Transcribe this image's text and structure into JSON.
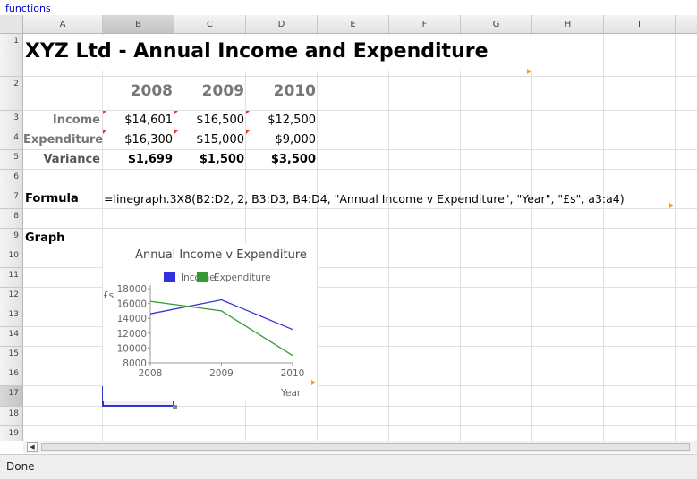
{
  "links": {
    "functions": "functions"
  },
  "columns": [
    "A",
    "B",
    "C",
    "D",
    "E",
    "F",
    "G",
    "H",
    "I"
  ],
  "selected_column": "B",
  "rows": [
    "1",
    "2",
    "3",
    "4",
    "5",
    "6",
    "7",
    "8",
    "9",
    "10",
    "11",
    "12",
    "13",
    "14",
    "15",
    "16",
    "17",
    "18",
    "19"
  ],
  "selected_row": "17",
  "cells": {
    "A1": "XYZ Ltd - Annual Income and Expenditure",
    "B2": "2008",
    "C2": "2009",
    "D2": "2010",
    "A3": "Income",
    "B3": "$14,601",
    "C3": "$16,500",
    "D3": "$12,500",
    "A4": "Expenditure",
    "B4": "$16,300",
    "C4": "$15,000",
    "D4": "$9,000",
    "A5": "Variance",
    "B5": "$1,699",
    "C5": "$1,500",
    "D5": "$3,500",
    "A7": "Formula",
    "B7": "=linegraph.3X8(B2:D2, 2, B3:D3, B4:D4, \"Annual Income v Expenditure\", \"Year\", \"£s\", a3:a4)",
    "A9": "Graph"
  },
  "status": {
    "text": "Done"
  },
  "colors": {
    "income": "#3333dd",
    "expenditure": "#339933",
    "selection": "#3333cc",
    "comment_marker": "#e33333",
    "overflow_marker": "#f0a020"
  },
  "chart_data": {
    "type": "line",
    "title": "Annual Income v Expenditure",
    "xlabel": "Year",
    "ylabel": "£s",
    "categories": [
      "2008",
      "2009",
      "2010"
    ],
    "series": [
      {
        "name": "Income",
        "values": [
          14601,
          16500,
          12500
        ],
        "color": "#3333dd"
      },
      {
        "name": "Expenditure",
        "values": [
          16300,
          15000,
          9000
        ],
        "color": "#339933"
      }
    ],
    "ylim": [
      8000,
      18000
    ],
    "yticks": [
      "18000",
      "16000",
      "14000",
      "12000",
      "10000",
      "8000"
    ],
    "legend": "top",
    "grid": false
  }
}
